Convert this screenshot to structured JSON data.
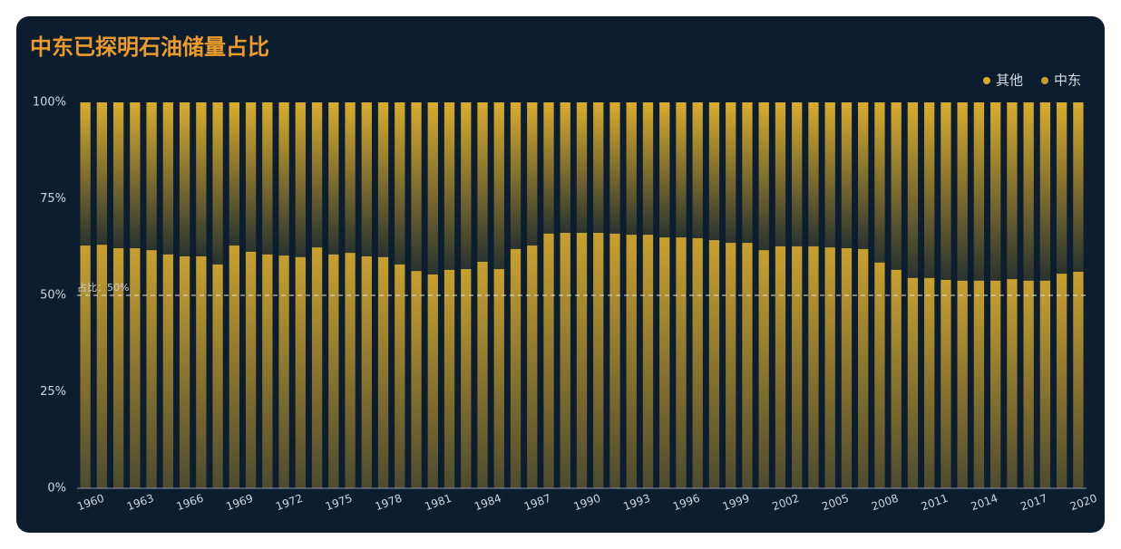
{
  "chart_data": {
    "type": "stacked_bar",
    "title": "中东已探明石油储量占比",
    "categories": [
      "1960",
      null,
      null,
      "1963",
      null,
      null,
      "1966",
      null,
      null,
      "1969",
      null,
      null,
      "1972",
      null,
      null,
      "1975",
      null,
      null,
      "1978",
      null,
      null,
      "1981",
      null,
      null,
      "1984",
      null,
      null,
      "1987",
      null,
      null,
      "1990",
      null,
      null,
      "1993",
      null,
      null,
      "1996",
      null,
      null,
      "1999",
      null,
      null,
      "2002",
      null,
      null,
      "2005",
      null,
      null,
      "2008",
      null,
      null,
      "2011",
      null,
      null,
      "2014",
      null,
      null,
      "2017",
      null,
      null,
      "2020"
    ],
    "series": [
      {
        "name": "其他",
        "color": "#d9ac2c",
        "values": [
          37.1,
          36.9,
          37.8,
          37.8,
          38.3,
          39.4,
          39.9,
          39.9,
          42.0,
          37.1,
          38.7,
          39.4,
          39.7,
          40.1,
          37.6,
          39.4,
          39.0,
          39.9,
          40.1,
          42.0,
          43.7,
          44.6,
          43.4,
          43.2,
          41.3,
          43.2,
          38.0,
          37.1,
          34.0,
          33.8,
          33.8,
          33.8,
          34.0,
          34.3,
          34.3,
          35.0,
          35.0,
          35.2,
          35.7,
          36.4,
          36.4,
          38.3,
          37.3,
          37.3,
          37.3,
          37.6,
          37.8,
          38.0,
          41.5,
          43.4,
          45.5,
          45.5,
          46.0,
          46.2,
          46.2,
          46.2,
          45.8,
          46.2,
          46.2,
          44.4,
          43.9
        ]
      },
      {
        "name": "中东",
        "color": "#c9a02e",
        "values": [
          62.9,
          63.1,
          62.2,
          62.2,
          61.7,
          60.6,
          60.1,
          60.1,
          58.0,
          62.9,
          61.3,
          60.6,
          60.3,
          59.9,
          62.4,
          60.6,
          61.0,
          60.1,
          59.9,
          58.0,
          56.3,
          55.4,
          56.6,
          56.8,
          58.7,
          56.8,
          62.0,
          62.9,
          66.0,
          66.2,
          66.2,
          66.2,
          66.0,
          65.7,
          65.7,
          65.0,
          65.0,
          64.8,
          64.3,
          63.6,
          63.6,
          61.7,
          62.7,
          62.7,
          62.7,
          62.4,
          62.2,
          62.0,
          58.5,
          56.6,
          54.5,
          54.5,
          54.0,
          53.8,
          53.8,
          53.8,
          54.2,
          53.8,
          53.8,
          55.6,
          56.1
        ]
      }
    ],
    "ylim": [
      0,
      100
    ],
    "yticks": [
      {
        "value": 0,
        "label": "0%"
      },
      {
        "value": 25,
        "label": "25%"
      },
      {
        "value": 50,
        "label": "50%"
      },
      {
        "value": 75,
        "label": "75%"
      },
      {
        "value": 100,
        "label": "100%"
      }
    ],
    "mark_line": {
      "value": 50,
      "label": "占比：50%"
    },
    "legend": "top-right",
    "grid": false
  }
}
